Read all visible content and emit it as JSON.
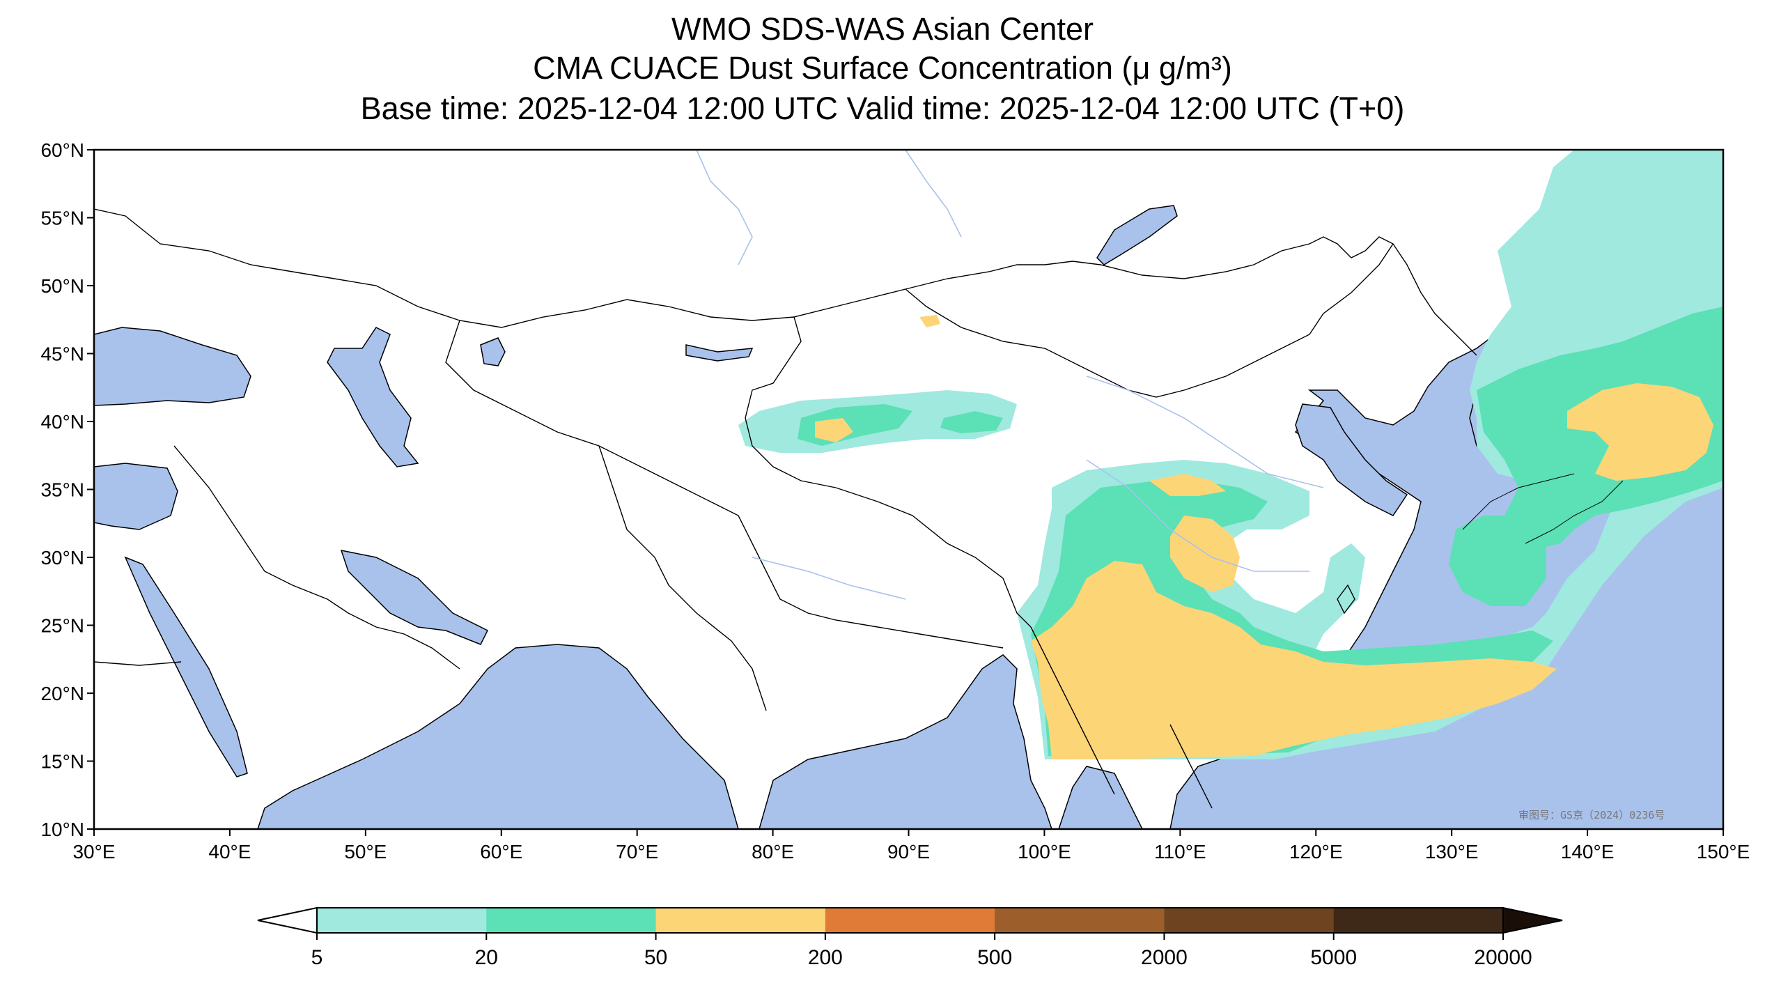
{
  "title": {
    "line1": "WMO SDS-WAS Asian Center",
    "line2": "CMA CUACE Dust Surface Concentration (μ g/m³)",
    "line3": "Base time: 2025-12-04 12:00 UTC Valid time: 2025-12-04 12:00 UTC (T+0)"
  },
  "map": {
    "lon_range": [
      30,
      150
    ],
    "lat_range": [
      10,
      60
    ],
    "lon_labels": [
      "30°E",
      "40°E",
      "50°E",
      "60°E",
      "70°E",
      "80°E",
      "90°E",
      "100°E",
      "110°E",
      "120°E",
      "130°E",
      "140°E",
      "150°E"
    ],
    "lat_labels": [
      "10°N",
      "15°N",
      "20°N",
      "25°N",
      "30°N",
      "35°N",
      "40°N",
      "45°N",
      "50°N",
      "55°N",
      "60°N"
    ],
    "watermark": "审图号：GS京（2024）0236号",
    "ocean_color": "#a9c2ec",
    "land_color": "#ffffff"
  },
  "legend": {
    "levels": [
      "5",
      "20",
      "50",
      "200",
      "500",
      "2000",
      "5000",
      "20000"
    ],
    "colors": [
      "#9fe9df",
      "#5ce0b6",
      "#fcd577",
      "#e07a37",
      "#9c5f2b",
      "#6e4420",
      "#3e2817"
    ],
    "under_color": "#ffffff",
    "over_color": "#1a0f08"
  }
}
